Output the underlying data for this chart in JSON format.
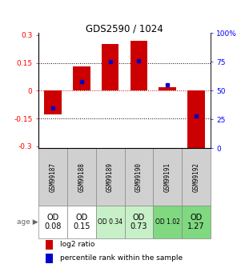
{
  "title": "GDS2590 / 1024",
  "samples": [
    "GSM99187",
    "GSM99188",
    "GSM99189",
    "GSM99190",
    "GSM99191",
    "GSM99192"
  ],
  "log2_ratio": [
    -0.13,
    0.13,
    0.25,
    0.27,
    0.02,
    -0.31
  ],
  "percentile_rank": [
    35,
    58,
    75,
    76,
    55,
    28
  ],
  "age_labels": [
    "OD\n0.08",
    "OD\n0.15",
    "OD 0.34",
    "OD\n0.73",
    "OD 1.02",
    "OD\n1.27"
  ],
  "age_fontsize_large": [
    true,
    true,
    false,
    true,
    false,
    true
  ],
  "cell_colors": [
    "#ffffff",
    "#ffffff",
    "#c8f0c8",
    "#c8f0c8",
    "#80d880",
    "#80d880"
  ],
  "ylim": [
    -0.31,
    0.31
  ],
  "yticks_left": [
    -0.3,
    -0.15,
    0,
    0.15,
    0.3
  ],
  "yticks_right": [
    0,
    25,
    50,
    75,
    100
  ],
  "bar_color": "#cc0000",
  "dot_color": "#0000cc",
  "background_color": "#ffffff",
  "dotted_line_color": "#000000",
  "zero_line_color": "#cc0000",
  "sample_bg": "#d0d0d0"
}
